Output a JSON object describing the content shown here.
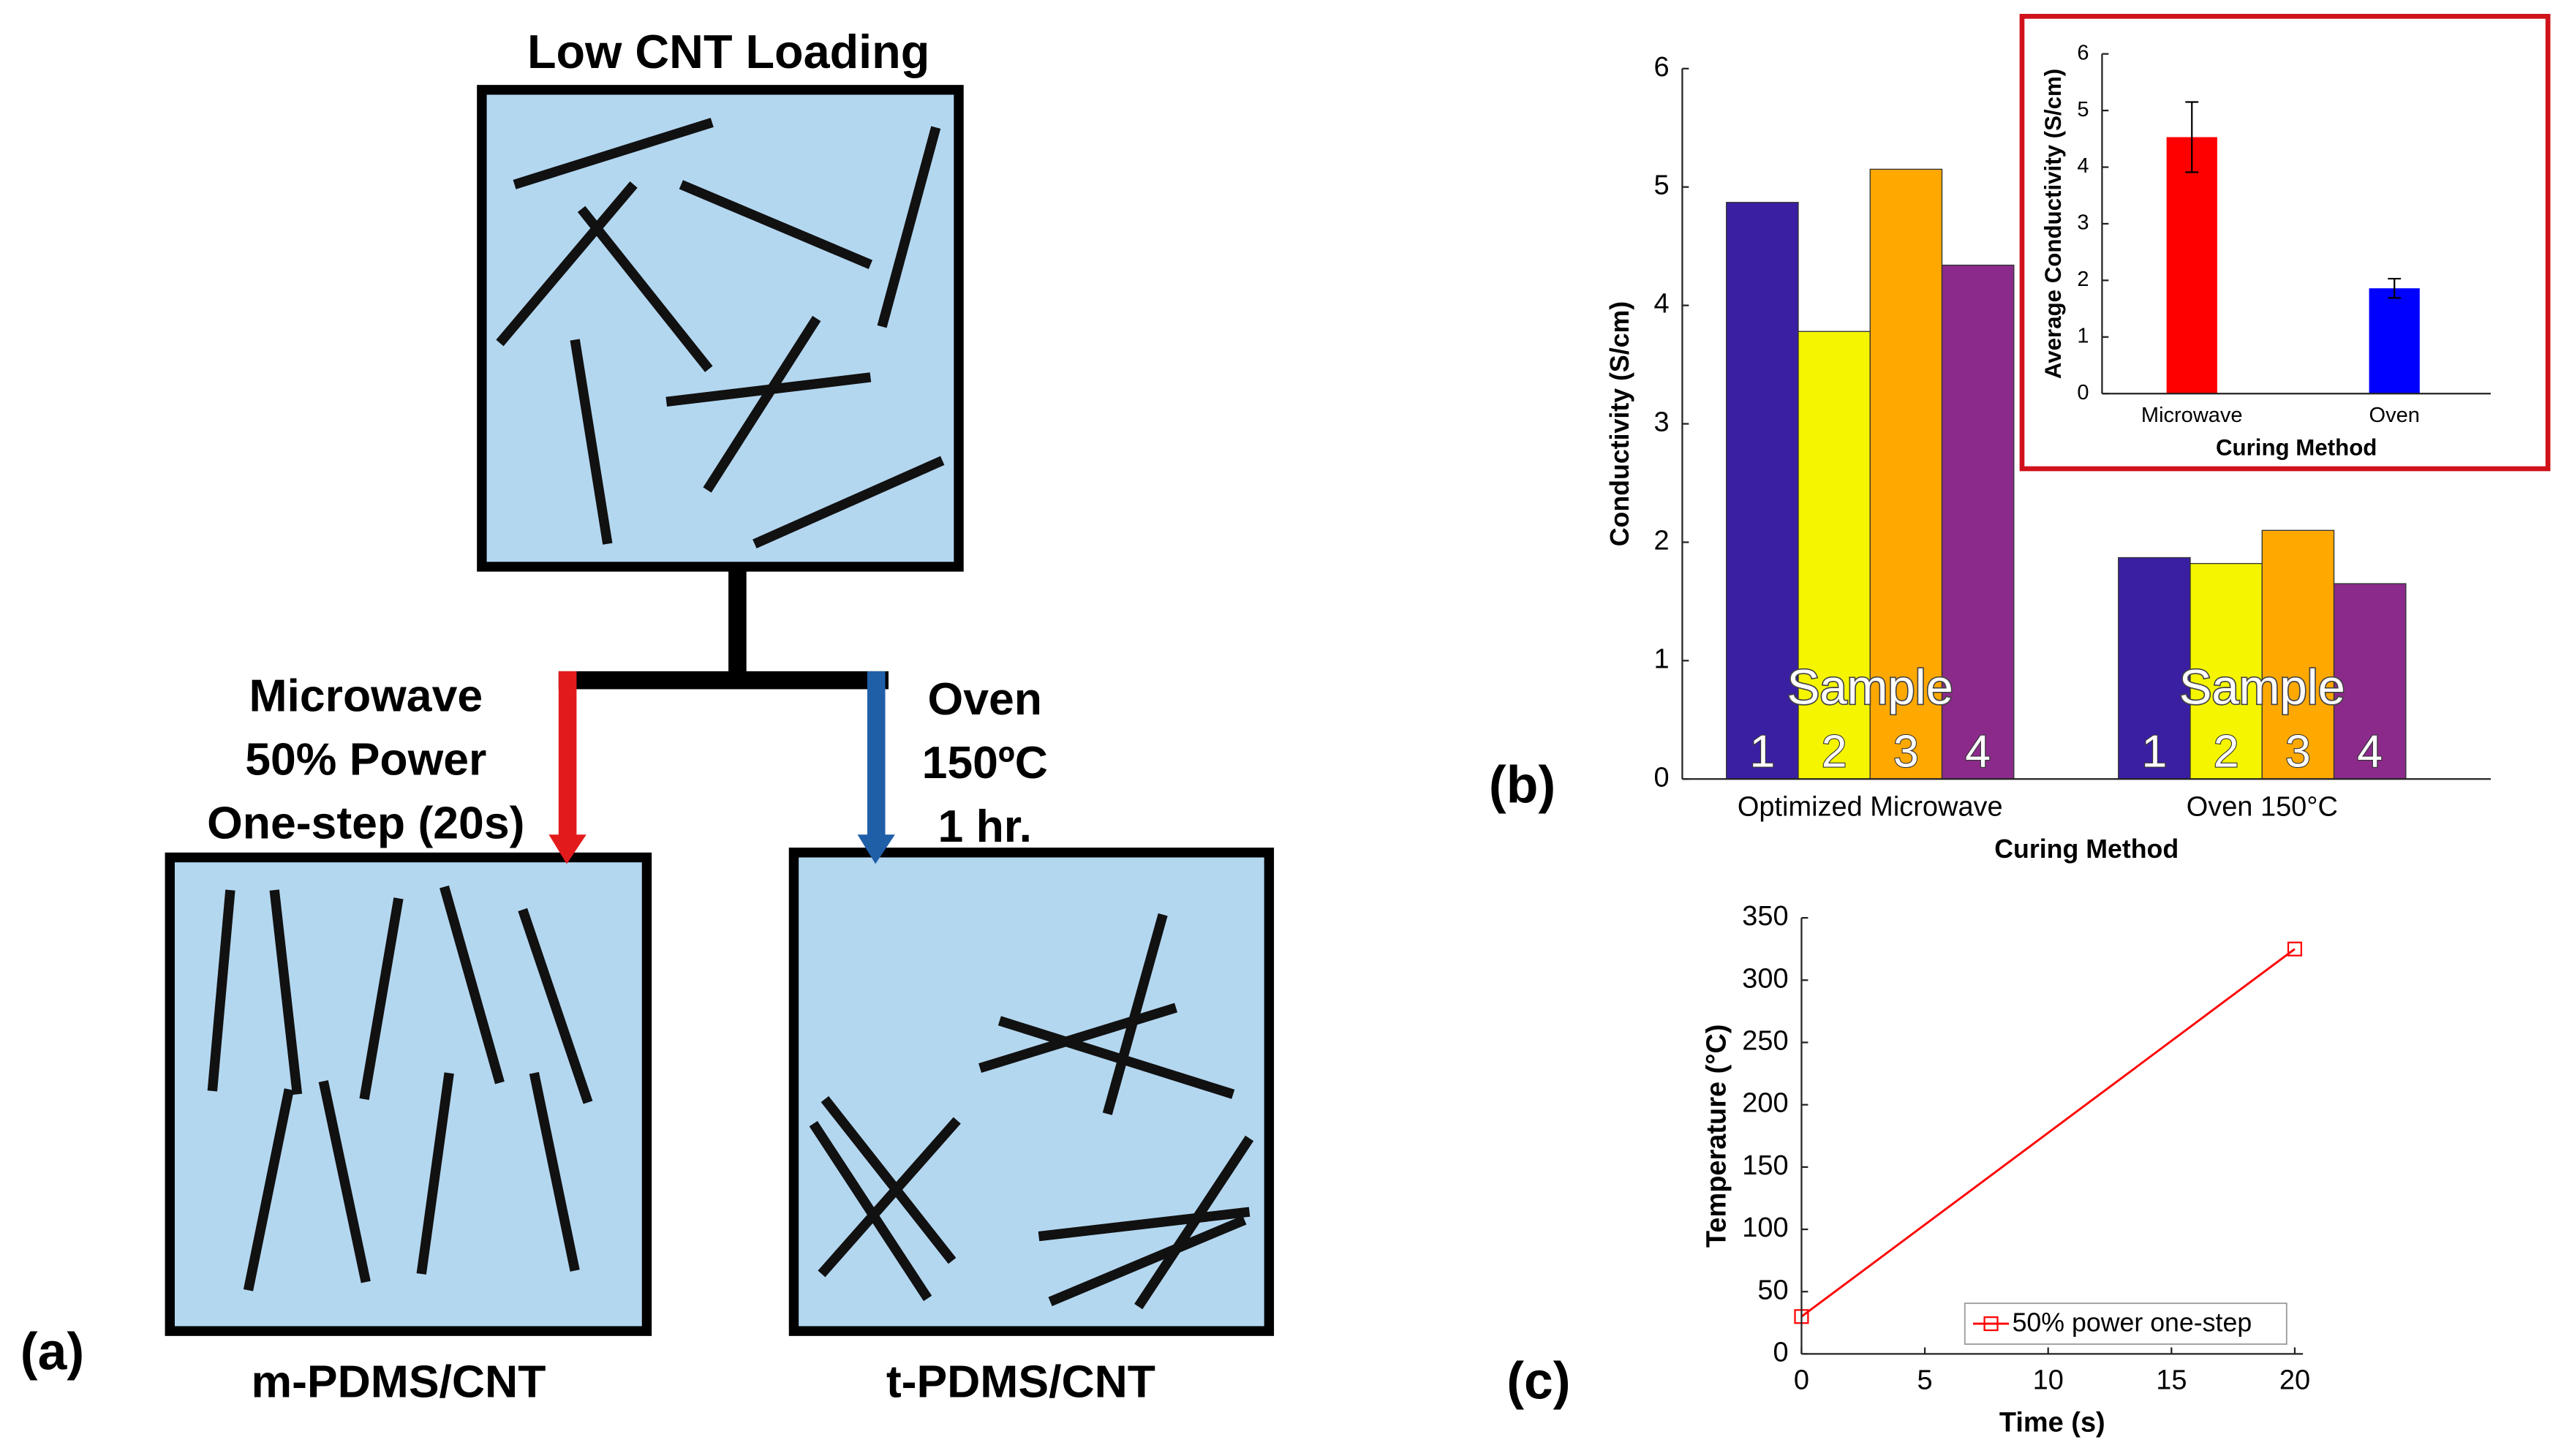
{
  "diagram": {
    "label": "(a)",
    "title": "Low CNT Loading",
    "microwave": [
      "Microwave",
      "50% Power",
      "One-step (20s)"
    ],
    "oven": [
      "Oven",
      "150ºC",
      "1 hr."
    ],
    "labels": [
      "m-PDMS/CNT",
      "t-PDMS/CNT"
    ]
  },
  "chart_data": [
    {
      "type": "bar",
      "label": "(b)",
      "xlabel": "Curing Method",
      "ylabel": "Conductivity (S/cm)",
      "categories": [
        "Optimized Microwave",
        "Oven 150°C"
      ],
      "annotation": "Sample",
      "series": [
        {
          "name": "1",
          "color": "#3b1fa3",
          "values": [
            4.87,
            1.87
          ]
        },
        {
          "name": "2",
          "color": "#f5f500",
          "values": [
            3.78,
            1.82
          ]
        },
        {
          "name": "3",
          "color": "#ffa800",
          "values": [
            5.15,
            2.1
          ]
        },
        {
          "name": "4",
          "color": "#8b2a8b",
          "values": [
            4.34,
            1.65
          ]
        }
      ],
      "ylim": [
        0,
        6
      ],
      "yticks": [
        0,
        1,
        2,
        3,
        4,
        5,
        6
      ]
    },
    {
      "type": "bar",
      "xlabel": "Curing Method",
      "ylabel": "Average Conductivity (S/cm)",
      "categories": [
        "Microwave",
        "Oven"
      ],
      "values": [
        4.53,
        1.86
      ],
      "errors": [
        0.62,
        0.17
      ],
      "colors": [
        "#ff0000",
        "#0000ff"
      ],
      "ylim": [
        0,
        6
      ],
      "yticks": [
        0,
        1,
        2,
        3,
        4,
        5,
        6
      ]
    },
    {
      "type": "line",
      "label": "(c)",
      "xlabel": "Time (s)",
      "ylabel": "Temperature (°C)",
      "x": [
        0,
        20
      ],
      "series": [
        {
          "name": "50% power one-step",
          "color": "#ff0000",
          "values": [
            30,
            325
          ]
        }
      ],
      "xlim": [
        0,
        20
      ],
      "xticks": [
        0,
        5,
        10,
        15,
        20
      ],
      "ylim": [
        0,
        350
      ],
      "yticks": [
        0,
        50,
        100,
        150,
        200,
        250,
        300,
        350
      ],
      "legend": "south"
    }
  ]
}
